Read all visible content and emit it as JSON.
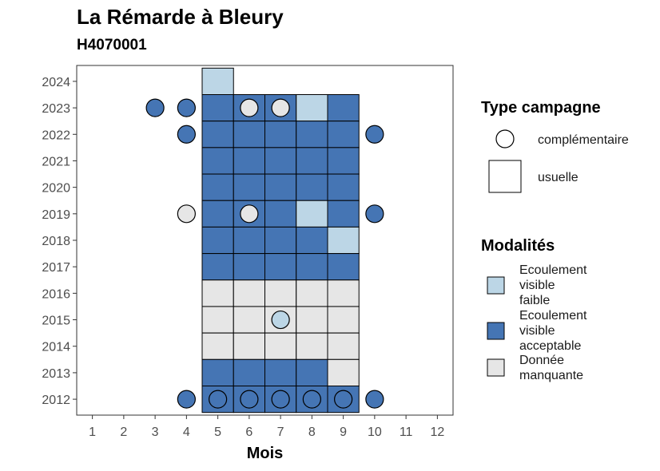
{
  "title": "La Rémarde à Bleury",
  "subtitle": "H4070001",
  "colors": {
    "faible": "#bcd6e6",
    "acceptable": "#4575b4",
    "manquante": "#e6e6e6"
  },
  "chart_data": {
    "type": "heatmap",
    "xlabel": "Mois",
    "ylabel": "",
    "x_ticks": [
      "1",
      "2",
      "3",
      "4",
      "5",
      "6",
      "7",
      "8",
      "9",
      "10",
      "11",
      "12"
    ],
    "y_ticks": [
      "2012",
      "2013",
      "2014",
      "2015",
      "2016",
      "2017",
      "2018",
      "2019",
      "2020",
      "2021",
      "2022",
      "2023",
      "2024"
    ],
    "xlim": [
      0.5,
      12.5
    ],
    "ylim": [
      2011.4,
      2024.6
    ],
    "legend_type_title": "Type campagne",
    "legend_type_items": [
      {
        "key": "complementaire",
        "label": "complémentaire"
      },
      {
        "key": "usuelle",
        "label": "usuelle"
      }
    ],
    "legend_mod_title": "Modalités",
    "legend_mod_items": [
      {
        "key": "faible",
        "lines": [
          "Ecoulement",
          "visible",
          "faible"
        ]
      },
      {
        "key": "acceptable",
        "lines": [
          "Ecoulement",
          "visible",
          "acceptable"
        ]
      },
      {
        "key": "manquante",
        "lines": [
          "Donnée",
          "manquante"
        ]
      }
    ],
    "usuelle": [
      {
        "year": 2024,
        "month": 5,
        "mod": "faible"
      },
      {
        "year": 2023,
        "month": 5,
        "mod": "acceptable"
      },
      {
        "year": 2023,
        "month": 6,
        "mod": "acceptable"
      },
      {
        "year": 2023,
        "month": 7,
        "mod": "acceptable"
      },
      {
        "year": 2023,
        "month": 8,
        "mod": "faible"
      },
      {
        "year": 2023,
        "month": 9,
        "mod": "acceptable"
      },
      {
        "year": 2022,
        "month": 5,
        "mod": "acceptable"
      },
      {
        "year": 2022,
        "month": 6,
        "mod": "acceptable"
      },
      {
        "year": 2022,
        "month": 7,
        "mod": "acceptable"
      },
      {
        "year": 2022,
        "month": 8,
        "mod": "acceptable"
      },
      {
        "year": 2022,
        "month": 9,
        "mod": "acceptable"
      },
      {
        "year": 2021,
        "month": 5,
        "mod": "acceptable"
      },
      {
        "year": 2021,
        "month": 6,
        "mod": "acceptable"
      },
      {
        "year": 2021,
        "month": 7,
        "mod": "acceptable"
      },
      {
        "year": 2021,
        "month": 8,
        "mod": "acceptable"
      },
      {
        "year": 2021,
        "month": 9,
        "mod": "acceptable"
      },
      {
        "year": 2020,
        "month": 5,
        "mod": "acceptable"
      },
      {
        "year": 2020,
        "month": 6,
        "mod": "acceptable"
      },
      {
        "year": 2020,
        "month": 7,
        "mod": "acceptable"
      },
      {
        "year": 2020,
        "month": 8,
        "mod": "acceptable"
      },
      {
        "year": 2020,
        "month": 9,
        "mod": "acceptable"
      },
      {
        "year": 2019,
        "month": 5,
        "mod": "acceptable"
      },
      {
        "year": 2019,
        "month": 6,
        "mod": "acceptable"
      },
      {
        "year": 2019,
        "month": 7,
        "mod": "acceptable"
      },
      {
        "year": 2019,
        "month": 8,
        "mod": "faible"
      },
      {
        "year": 2019,
        "month": 9,
        "mod": "acceptable"
      },
      {
        "year": 2018,
        "month": 5,
        "mod": "acceptable"
      },
      {
        "year": 2018,
        "month": 6,
        "mod": "acceptable"
      },
      {
        "year": 2018,
        "month": 7,
        "mod": "acceptable"
      },
      {
        "year": 2018,
        "month": 8,
        "mod": "acceptable"
      },
      {
        "year": 2018,
        "month": 9,
        "mod": "faible"
      },
      {
        "year": 2017,
        "month": 5,
        "mod": "acceptable"
      },
      {
        "year": 2017,
        "month": 6,
        "mod": "acceptable"
      },
      {
        "year": 2017,
        "month": 7,
        "mod": "acceptable"
      },
      {
        "year": 2017,
        "month": 8,
        "mod": "acceptable"
      },
      {
        "year": 2017,
        "month": 9,
        "mod": "acceptable"
      },
      {
        "year": 2016,
        "month": 5,
        "mod": "manquante"
      },
      {
        "year": 2016,
        "month": 6,
        "mod": "manquante"
      },
      {
        "year": 2016,
        "month": 7,
        "mod": "manquante"
      },
      {
        "year": 2016,
        "month": 8,
        "mod": "manquante"
      },
      {
        "year": 2016,
        "month": 9,
        "mod": "manquante"
      },
      {
        "year": 2015,
        "month": 5,
        "mod": "manquante"
      },
      {
        "year": 2015,
        "month": 6,
        "mod": "manquante"
      },
      {
        "year": 2015,
        "month": 7,
        "mod": "manquante"
      },
      {
        "year": 2015,
        "month": 8,
        "mod": "manquante"
      },
      {
        "year": 2015,
        "month": 9,
        "mod": "manquante"
      },
      {
        "year": 2014,
        "month": 5,
        "mod": "manquante"
      },
      {
        "year": 2014,
        "month": 6,
        "mod": "manquante"
      },
      {
        "year": 2014,
        "month": 7,
        "mod": "manquante"
      },
      {
        "year": 2014,
        "month": 8,
        "mod": "manquante"
      },
      {
        "year": 2014,
        "month": 9,
        "mod": "manquante"
      },
      {
        "year": 2013,
        "month": 5,
        "mod": "acceptable"
      },
      {
        "year": 2013,
        "month": 6,
        "mod": "acceptable"
      },
      {
        "year": 2013,
        "month": 7,
        "mod": "acceptable"
      },
      {
        "year": 2013,
        "month": 8,
        "mod": "acceptable"
      },
      {
        "year": 2013,
        "month": 9,
        "mod": "manquante"
      },
      {
        "year": 2012,
        "month": 5,
        "mod": "acceptable"
      },
      {
        "year": 2012,
        "month": 6,
        "mod": "acceptable"
      },
      {
        "year": 2012,
        "month": 7,
        "mod": "acceptable"
      },
      {
        "year": 2012,
        "month": 8,
        "mod": "acceptable"
      },
      {
        "year": 2012,
        "month": 9,
        "mod": "acceptable"
      }
    ],
    "complementaire": [
      {
        "year": 2023,
        "month": 3,
        "mod": "acceptable"
      },
      {
        "year": 2023,
        "month": 4,
        "mod": "acceptable"
      },
      {
        "year": 2023,
        "month": 6,
        "mod": "manquante"
      },
      {
        "year": 2023,
        "month": 7,
        "mod": "manquante"
      },
      {
        "year": 2022,
        "month": 4,
        "mod": "acceptable"
      },
      {
        "year": 2022,
        "month": 10,
        "mod": "acceptable"
      },
      {
        "year": 2019,
        "month": 4,
        "mod": "manquante"
      },
      {
        "year": 2019,
        "month": 6,
        "mod": "manquante"
      },
      {
        "year": 2019,
        "month": 10,
        "mod": "acceptable"
      },
      {
        "year": 2015,
        "month": 7,
        "mod": "faible"
      },
      {
        "year": 2012,
        "month": 4,
        "mod": "acceptable"
      },
      {
        "year": 2012,
        "month": 5,
        "mod": "acceptable"
      },
      {
        "year": 2012,
        "month": 6,
        "mod": "acceptable"
      },
      {
        "year": 2012,
        "month": 7,
        "mod": "acceptable"
      },
      {
        "year": 2012,
        "month": 8,
        "mod": "acceptable"
      },
      {
        "year": 2012,
        "month": 9,
        "mod": "acceptable"
      },
      {
        "year": 2012,
        "month": 10,
        "mod": "acceptable"
      }
    ]
  }
}
